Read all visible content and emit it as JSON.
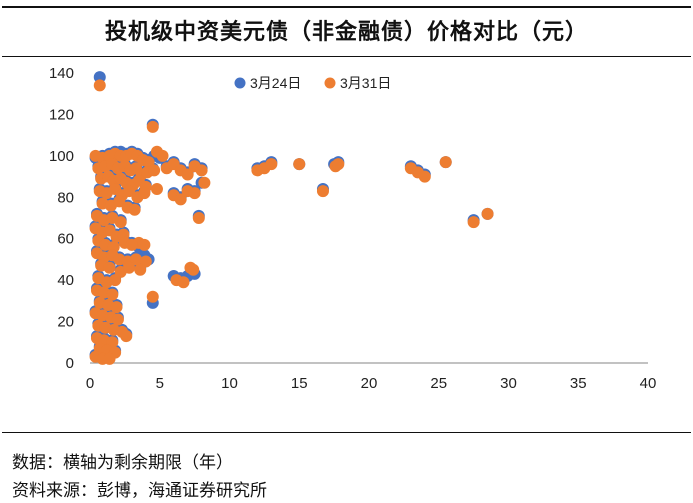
{
  "header": {
    "title": "投机级中资美元债（非金融债）价格对比（元）"
  },
  "footer": {
    "note_data": "数据：横轴为剩余期限（年）",
    "note_source": "资料来源：彭博，海通证券研究所"
  },
  "colors": {
    "series_mar24": "#4472C4",
    "series_mar31": "#ED7D31",
    "axis": "#9e9e9e"
  },
  "chart_data": {
    "type": "scatter",
    "title": "投机级中资美元债（非金融债）价格对比（元）",
    "xlabel": "",
    "ylabel": "",
    "xlim": [
      0,
      40
    ],
    "ylim": [
      0,
      140
    ],
    "x_ticks": [
      0,
      5,
      10,
      15,
      20,
      25,
      30,
      35,
      40
    ],
    "y_ticks": [
      0,
      20,
      40,
      60,
      80,
      100,
      120,
      140
    ],
    "grid": false,
    "legend_position": "top-center",
    "series": [
      {
        "name": "3月24日",
        "points": [
          [
            0.7,
            138
          ],
          [
            4.5,
            115
          ],
          [
            0.4,
            99
          ],
          [
            0.9,
            100
          ],
          [
            1.4,
            101
          ],
          [
            1.8,
            102
          ],
          [
            2.2,
            102
          ],
          [
            2.6,
            101
          ],
          [
            3.0,
            102
          ],
          [
            3.4,
            101
          ],
          [
            3.8,
            99
          ],
          [
            4.2,
            98
          ],
          [
            4.6,
            100
          ],
          [
            5.0,
            99
          ],
          [
            0.6,
            95
          ],
          [
            1.1,
            96
          ],
          [
            1.6,
            97
          ],
          [
            2.0,
            95
          ],
          [
            2.5,
            96
          ],
          [
            2.9,
            94
          ],
          [
            3.3,
            95
          ],
          [
            3.7,
            92
          ],
          [
            4.1,
            93
          ],
          [
            4.5,
            94
          ],
          [
            0.8,
            90
          ],
          [
            1.3,
            91
          ],
          [
            1.7,
            89
          ],
          [
            2.2,
            90
          ],
          [
            2.6,
            88
          ],
          [
            3.1,
            87
          ],
          [
            3.5,
            89
          ],
          [
            4.0,
            86
          ],
          [
            0.7,
            84
          ],
          [
            1.2,
            83
          ],
          [
            1.8,
            85
          ],
          [
            2.3,
            82
          ],
          [
            2.8,
            84
          ],
          [
            3.4,
            81
          ],
          [
            3.9,
            83
          ],
          [
            0.9,
            78
          ],
          [
            1.5,
            77
          ],
          [
            2.1,
            79
          ],
          [
            2.7,
            76
          ],
          [
            3.2,
            75
          ],
          [
            0.5,
            72
          ],
          [
            1.0,
            70
          ],
          [
            1.6,
            71
          ],
          [
            2.2,
            69
          ],
          [
            0.4,
            66
          ],
          [
            0.9,
            64
          ],
          [
            1.4,
            65
          ],
          [
            1.9,
            62
          ],
          [
            2.4,
            63
          ],
          [
            0.6,
            60
          ],
          [
            1.1,
            58
          ],
          [
            1.7,
            57
          ],
          [
            2.5,
            59
          ],
          [
            3.0,
            58
          ],
          [
            3.5,
            56
          ],
          [
            0.5,
            54
          ],
          [
            1.0,
            52
          ],
          [
            1.6,
            53
          ],
          [
            2.1,
            51
          ],
          [
            2.7,
            50
          ],
          [
            3.3,
            51
          ],
          [
            3.9,
            52
          ],
          [
            4.2,
            50
          ],
          [
            0.8,
            48
          ],
          [
            1.4,
            47
          ],
          [
            2.2,
            45
          ],
          [
            2.8,
            47
          ],
          [
            3.6,
            46
          ],
          [
            0.6,
            42
          ],
          [
            1.2,
            40
          ],
          [
            1.8,
            41
          ],
          [
            6.0,
            42
          ],
          [
            6.5,
            41
          ],
          [
            7.0,
            42
          ],
          [
            7.5,
            43
          ],
          [
            0.5,
            36
          ],
          [
            1.0,
            35
          ],
          [
            1.6,
            34
          ],
          [
            0.7,
            30
          ],
          [
            1.3,
            29
          ],
          [
            4.5,
            29
          ],
          [
            1.9,
            28
          ],
          [
            0.4,
            25
          ],
          [
            0.9,
            24
          ],
          [
            1.5,
            23
          ],
          [
            2.0,
            22
          ],
          [
            0.6,
            19
          ],
          [
            1.1,
            18
          ],
          [
            1.7,
            17
          ],
          [
            2.3,
            16
          ],
          [
            0.5,
            13
          ],
          [
            1.0,
            12
          ],
          [
            1.6,
            11
          ],
          [
            2.6,
            14
          ],
          [
            0.7,
            8
          ],
          [
            1.2,
            7
          ],
          [
            1.8,
            6
          ],
          [
            0.4,
            4
          ],
          [
            0.9,
            3
          ],
          [
            1.4,
            3
          ],
          [
            5.5,
            95
          ],
          [
            6.0,
            97
          ],
          [
            6.5,
            94
          ],
          [
            7.0,
            92
          ],
          [
            7.5,
            96
          ],
          [
            8.0,
            94
          ],
          [
            6.0,
            82
          ],
          [
            6.5,
            80
          ],
          [
            7.0,
            84
          ],
          [
            7.5,
            83
          ],
          [
            8.0,
            87
          ],
          [
            12.0,
            94
          ],
          [
            12.5,
            95
          ],
          [
            13.0,
            97
          ],
          [
            15.0,
            96
          ],
          [
            17.5,
            96
          ],
          [
            17.8,
            97
          ],
          [
            16.7,
            84
          ],
          [
            23.0,
            95
          ],
          [
            23.5,
            93
          ],
          [
            24.0,
            91
          ],
          [
            25.5,
            97
          ],
          [
            27.5,
            69
          ],
          [
            28.5,
            72
          ],
          [
            7.8,
            71
          ]
        ]
      },
      {
        "name": "3月31日",
        "points": [
          [
            0.7,
            134
          ],
          [
            4.5,
            114
          ],
          [
            0.4,
            100
          ],
          [
            0.9,
            99
          ],
          [
            1.4,
            100
          ],
          [
            1.8,
            101
          ],
          [
            2.2,
            100
          ],
          [
            2.6,
            100
          ],
          [
            3.0,
            101
          ],
          [
            3.4,
            100
          ],
          [
            3.8,
            98
          ],
          [
            4.2,
            97
          ],
          [
            4.8,
            102
          ],
          [
            5.2,
            100
          ],
          [
            0.6,
            94
          ],
          [
            1.1,
            95
          ],
          [
            1.6,
            96
          ],
          [
            2.0,
            94
          ],
          [
            2.5,
            95
          ],
          [
            2.9,
            93
          ],
          [
            3.3,
            94
          ],
          [
            3.7,
            91
          ],
          [
            4.1,
            92
          ],
          [
            4.6,
            93
          ],
          [
            0.8,
            89
          ],
          [
            1.3,
            90
          ],
          [
            1.7,
            88
          ],
          [
            2.2,
            89
          ],
          [
            2.6,
            87
          ],
          [
            3.1,
            86
          ],
          [
            3.5,
            88
          ],
          [
            4.0,
            85
          ],
          [
            4.8,
            84
          ],
          [
            0.7,
            83
          ],
          [
            1.2,
            82
          ],
          [
            1.8,
            84
          ],
          [
            2.3,
            81
          ],
          [
            2.8,
            83
          ],
          [
            3.4,
            80
          ],
          [
            3.9,
            82
          ],
          [
            0.9,
            77
          ],
          [
            1.5,
            76
          ],
          [
            2.1,
            78
          ],
          [
            2.7,
            75
          ],
          [
            3.2,
            74
          ],
          [
            0.5,
            71
          ],
          [
            1.0,
            69
          ],
          [
            1.6,
            70
          ],
          [
            2.2,
            68
          ],
          [
            0.4,
            65
          ],
          [
            0.9,
            63
          ],
          [
            1.4,
            64
          ],
          [
            1.9,
            61
          ],
          [
            2.4,
            62
          ],
          [
            3.5,
            58
          ],
          [
            0.6,
            59
          ],
          [
            1.1,
            57
          ],
          [
            1.7,
            56
          ],
          [
            2.5,
            58
          ],
          [
            3.0,
            57
          ],
          [
            3.9,
            57
          ],
          [
            0.5,
            53
          ],
          [
            1.0,
            51
          ],
          [
            1.6,
            52
          ],
          [
            2.1,
            50
          ],
          [
            2.7,
            49
          ],
          [
            3.3,
            50
          ],
          [
            4.0,
            49
          ],
          [
            0.8,
            47
          ],
          [
            1.4,
            46
          ],
          [
            2.2,
            44
          ],
          [
            2.8,
            46
          ],
          [
            3.6,
            45
          ],
          [
            0.6,
            41
          ],
          [
            1.2,
            39
          ],
          [
            1.8,
            40
          ],
          [
            6.2,
            40
          ],
          [
            6.7,
            39
          ],
          [
            7.2,
            46
          ],
          [
            7.4,
            45
          ],
          [
            0.5,
            35
          ],
          [
            1.0,
            34
          ],
          [
            1.6,
            33
          ],
          [
            4.5,
            32
          ],
          [
            0.7,
            29
          ],
          [
            1.3,
            28
          ],
          [
            1.9,
            27
          ],
          [
            0.4,
            24
          ],
          [
            0.9,
            23
          ],
          [
            1.5,
            22
          ],
          [
            2.0,
            21
          ],
          [
            0.6,
            18
          ],
          [
            1.1,
            17
          ],
          [
            1.7,
            16
          ],
          [
            2.3,
            15
          ],
          [
            0.5,
            12
          ],
          [
            1.0,
            11
          ],
          [
            1.6,
            10
          ],
          [
            2.6,
            13
          ],
          [
            0.7,
            7
          ],
          [
            1.2,
            6
          ],
          [
            1.8,
            5
          ],
          [
            0.4,
            3
          ],
          [
            0.9,
            2
          ],
          [
            1.4,
            2
          ],
          [
            5.5,
            94
          ],
          [
            6.0,
            96
          ],
          [
            6.5,
            93
          ],
          [
            7.0,
            91
          ],
          [
            7.5,
            95
          ],
          [
            8.0,
            93
          ],
          [
            8.2,
            87
          ],
          [
            6.0,
            81
          ],
          [
            6.5,
            79
          ],
          [
            7.0,
            83
          ],
          [
            7.5,
            82
          ],
          [
            7.8,
            70
          ],
          [
            12.0,
            93
          ],
          [
            12.5,
            94
          ],
          [
            13.0,
            96
          ],
          [
            15.0,
            96
          ],
          [
            17.6,
            95
          ],
          [
            17.8,
            96
          ],
          [
            16.7,
            83
          ],
          [
            23.0,
            94
          ],
          [
            23.5,
            92
          ],
          [
            24.0,
            90
          ],
          [
            25.5,
            97
          ],
          [
            27.5,
            68
          ],
          [
            28.5,
            72
          ]
        ]
      }
    ]
  }
}
